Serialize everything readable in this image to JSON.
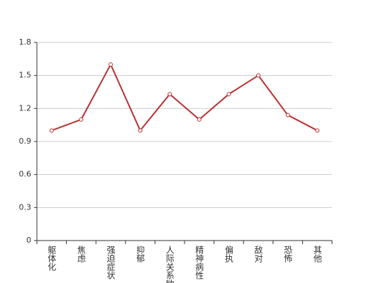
{
  "chart_data": {
    "type": "line",
    "categories": [
      "躯体化",
      "焦虑",
      "强迫症状",
      "抑郁",
      "人际关系敏感",
      "精神病性",
      "偏执",
      "敌对",
      "恐怖",
      "其他"
    ],
    "series": [
      {
        "color": "#b83232",
        "values": [
          1.0,
          1.1,
          1.6,
          1.0,
          1.33,
          1.1,
          1.33,
          1.5,
          1.14,
          1.0
        ]
      }
    ],
    "ylim": [
      0,
      1.8
    ],
    "yticks": [
      0,
      0.3,
      0.6,
      0.9,
      1.2,
      1.5,
      1.8
    ],
    "grid": true
  }
}
